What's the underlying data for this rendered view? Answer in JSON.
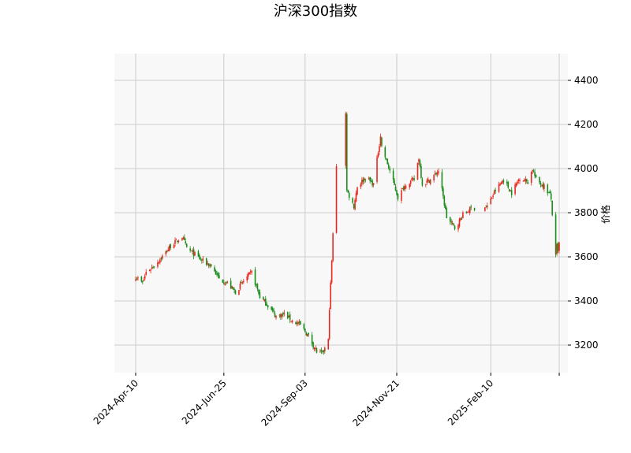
{
  "chart_data": {
    "type": "candlestick",
    "title": "沪深300指数",
    "xlabel": "",
    "ylabel": "价格",
    "x_ticks": [
      "2024-Apr-10",
      "2024-Jun-25",
      "2024-Sep-03",
      "2024-Nov-21",
      "2025-Feb-10"
    ],
    "y_ticks": [
      3200,
      3400,
      3600,
      3800,
      4000,
      4200,
      4400
    ],
    "ylim": [
      3080,
      4510
    ],
    "date_range": [
      "2024-04-10",
      "2025-04-10"
    ],
    "grid": true,
    "colors": {
      "up": "#e8281e",
      "down": "#1a8c1a",
      "plot_bg": "#f8f8f8",
      "grid": "#cccccc"
    },
    "close_series": [
      [
        "2024-04-10",
        3510
      ],
      [
        "2024-04-16",
        3480
      ],
      [
        "2024-04-19",
        3530
      ],
      [
        "2024-04-26",
        3560
      ],
      [
        "2024-05-06",
        3620
      ],
      [
        "2024-05-10",
        3650
      ],
      [
        "2024-05-20",
        3690
      ],
      [
        "2024-05-24",
        3640
      ],
      [
        "2024-05-31",
        3610
      ],
      [
        "2024-06-07",
        3580
      ],
      [
        "2024-06-14",
        3560
      ],
      [
        "2024-06-21",
        3500
      ],
      [
        "2024-06-28",
        3480
      ],
      [
        "2024-07-05",
        3440
      ],
      [
        "2024-07-12",
        3490
      ],
      [
        "2024-07-19",
        3530
      ],
      [
        "2024-07-26",
        3420
      ],
      [
        "2024-08-02",
        3380
      ],
      [
        "2024-08-09",
        3330
      ],
      [
        "2024-08-16",
        3340
      ],
      [
        "2024-08-23",
        3310
      ],
      [
        "2024-08-30",
        3290
      ],
      [
        "2024-09-06",
        3240
      ],
      [
        "2024-09-13",
        3170
      ],
      [
        "2024-09-18",
        3160
      ],
      [
        "2024-09-23",
        3220
      ],
      [
        "2024-09-24",
        3370
      ],
      [
        "2024-09-26",
        3580
      ],
      [
        "2024-09-27",
        3700
      ],
      [
        "2024-09-30",
        4017
      ],
      [
        "2024-10-08",
        4256
      ],
      [
        "2024-10-09",
        3900
      ],
      [
        "2024-10-15",
        3830
      ],
      [
        "2024-10-18",
        3920
      ],
      [
        "2024-10-25",
        3960
      ],
      [
        "2024-11-01",
        3930
      ],
      [
        "2024-11-07",
        4150
      ],
      [
        "2024-11-08",
        4100
      ],
      [
        "2024-11-15",
        3990
      ],
      [
        "2024-11-22",
        3870
      ],
      [
        "2024-11-29",
        3930
      ],
      [
        "2024-12-06",
        3950
      ],
      [
        "2024-12-10",
        4050
      ],
      [
        "2024-12-13",
        3930
      ],
      [
        "2024-12-20",
        3950
      ],
      [
        "2024-12-27",
        3990
      ],
      [
        "2025-01-03",
        3780
      ],
      [
        "2025-01-10",
        3730
      ],
      [
        "2025-01-17",
        3790
      ],
      [
        "2025-01-24",
        3820
      ],
      [
        "2025-02-07",
        3830
      ],
      [
        "2025-02-14",
        3900
      ],
      [
        "2025-02-21",
        3950
      ],
      [
        "2025-02-28",
        3890
      ],
      [
        "2025-03-07",
        3960
      ],
      [
        "2025-03-14",
        3940
      ],
      [
        "2025-03-18",
        4000
      ],
      [
        "2025-03-21",
        3950
      ],
      [
        "2025-03-28",
        3920
      ],
      [
        "2025-04-02",
        3880
      ],
      [
        "2025-04-03",
        3860
      ],
      [
        "2025-04-07",
        3600
      ],
      [
        "2025-04-08",
        3650
      ],
      [
        "2025-04-09",
        3620
      ],
      [
        "2025-04-10",
        3660
      ]
    ]
  }
}
